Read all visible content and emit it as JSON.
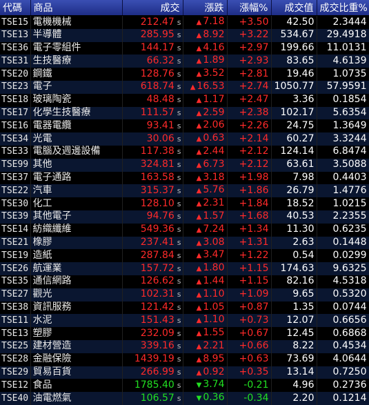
{
  "headers": [
    "代碼",
    "商品",
    "成交",
    "漲跌",
    "漲幅%",
    "成交值",
    "成交比重%"
  ],
  "colors": {
    "up": "#ff2a2a",
    "down": "#22e022",
    "header_bg": "#1e2d86"
  },
  "rows": [
    {
      "code": "TSE15",
      "name": "電機機械",
      "price": "212.47",
      "price_suffix": "s",
      "change": "7.18",
      "pct": "+3.50",
      "value": "42.50",
      "share": "2.3444",
      "dir": "up"
    },
    {
      "code": "TSE13",
      "name": "半導體",
      "price": "285.95",
      "price_suffix": "s",
      "change": "8.92",
      "pct": "+3.22",
      "value": "534.67",
      "share": "29.4918",
      "dir": "up"
    },
    {
      "code": "TSE36",
      "name": "電子零組件",
      "price": "144.17",
      "price_suffix": "s",
      "change": "4.16",
      "pct": "+2.97",
      "value": "199.66",
      "share": "11.0131",
      "dir": "up"
    },
    {
      "code": "TSE31",
      "name": "生技醫療",
      "price": "66.32",
      "price_suffix": "s",
      "change": "1.89",
      "pct": "+2.93",
      "value": "83.65",
      "share": "4.6139",
      "dir": "up"
    },
    {
      "code": "TSE20",
      "name": "鋼鐵",
      "price": "128.76",
      "price_suffix": "s",
      "change": "3.52",
      "pct": "+2.81",
      "value": "19.46",
      "share": "1.0735",
      "dir": "up"
    },
    {
      "code": "TSE23",
      "name": "電子",
      "price": "618.74",
      "price_suffix": "s",
      "change": "16.53",
      "pct": "+2.74",
      "value": "1050.77",
      "share": "57.9591",
      "dir": "up"
    },
    {
      "code": "TSE18",
      "name": "玻璃陶瓷",
      "price": "48.48",
      "price_suffix": "s",
      "change": "1.17",
      "pct": "+2.47",
      "value": "3.36",
      "share": "0.1854",
      "dir": "up"
    },
    {
      "code": "TSE17",
      "name": "化學生技醫療",
      "price": "111.57",
      "price_suffix": "s",
      "change": "2.59",
      "pct": "+2.38",
      "value": "102.17",
      "share": "5.6354",
      "dir": "up"
    },
    {
      "code": "TSE16",
      "name": "電器電纜",
      "price": "93.41",
      "price_suffix": "s",
      "change": "2.06",
      "pct": "+2.26",
      "value": "24.75",
      "share": "1.3649",
      "dir": "up"
    },
    {
      "code": "TSE34",
      "name": "光電",
      "price": "30.06",
      "price_suffix": "s",
      "change": "0.63",
      "pct": "+2.14",
      "value": "60.27",
      "share": "3.3244",
      "dir": "up"
    },
    {
      "code": "TSE33",
      "name": "電腦及週邊設備",
      "price": "117.38",
      "price_suffix": "s",
      "change": "2.44",
      "pct": "+2.12",
      "value": "124.14",
      "share": "6.8474",
      "dir": "up"
    },
    {
      "code": "TSE99",
      "name": "其他",
      "price": "324.81",
      "price_suffix": "s",
      "change": "6.73",
      "pct": "+2.12",
      "value": "63.61",
      "share": "3.5088",
      "dir": "up"
    },
    {
      "code": "TSE37",
      "name": "電子通路",
      "price": "163.58",
      "price_suffix": "s",
      "change": "3.18",
      "pct": "+1.98",
      "value": "7.98",
      "share": "0.4403",
      "dir": "up"
    },
    {
      "code": "TSE22",
      "name": "汽車",
      "price": "315.37",
      "price_suffix": "s",
      "change": "5.76",
      "pct": "+1.86",
      "value": "26.79",
      "share": "1.4776",
      "dir": "up"
    },
    {
      "code": "TSE30",
      "name": "化工",
      "price": "128.10",
      "price_suffix": "s",
      "change": "2.31",
      "pct": "+1.84",
      "value": "18.52",
      "share": "1.0215",
      "dir": "up"
    },
    {
      "code": "TSE39",
      "name": "其他電子",
      "price": "94.76",
      "price_suffix": "s",
      "change": "1.57",
      "pct": "+1.68",
      "value": "40.53",
      "share": "2.2355",
      "dir": "up"
    },
    {
      "code": "TSE14",
      "name": "紡織纖維",
      "price": "549.36",
      "price_suffix": "s",
      "change": "7.24",
      "pct": "+1.34",
      "value": "11.30",
      "share": "0.6235",
      "dir": "up"
    },
    {
      "code": "TSE21",
      "name": "橡膠",
      "price": "237.41",
      "price_suffix": "s",
      "change": "3.08",
      "pct": "+1.31",
      "value": "2.63",
      "share": "0.1448",
      "dir": "up"
    },
    {
      "code": "TSE19",
      "name": "造紙",
      "price": "287.84",
      "price_suffix": "s",
      "change": "3.47",
      "pct": "+1.22",
      "value": "0.54",
      "share": "0.0299",
      "dir": "up"
    },
    {
      "code": "TSE26",
      "name": "航運業",
      "price": "157.72",
      "price_suffix": "s",
      "change": "1.80",
      "pct": "+1.15",
      "value": "174.63",
      "share": "9.6325",
      "dir": "up"
    },
    {
      "code": "TSE35",
      "name": "通信網路",
      "price": "126.62",
      "price_suffix": "s",
      "change": "1.44",
      "pct": "+1.15",
      "value": "82.16",
      "share": "4.5318",
      "dir": "up"
    },
    {
      "code": "TSE27",
      "name": "觀光",
      "price": "102.31",
      "price_suffix": "s",
      "change": "1.10",
      "pct": "+1.09",
      "value": "9.65",
      "share": "0.5320",
      "dir": "up"
    },
    {
      "code": "TSE38",
      "name": "資訊服務",
      "price": "121.42",
      "price_suffix": "s",
      "change": "1.05",
      "pct": "+0.87",
      "value": "1.35",
      "share": "0.0744",
      "dir": "up"
    },
    {
      "code": "TSE11",
      "name": "水泥",
      "price": "151.43",
      "price_suffix": "s",
      "change": "1.10",
      "pct": "+0.73",
      "value": "12.07",
      "share": "0.6656",
      "dir": "up"
    },
    {
      "code": "TSE13",
      "name": "塑膠",
      "price": "232.09",
      "price_suffix": "s",
      "change": "1.55",
      "pct": "+0.67",
      "value": "12.45",
      "share": "0.6868",
      "dir": "up"
    },
    {
      "code": "TSE25",
      "name": "建材營造",
      "price": "339.16",
      "price_suffix": "s",
      "change": "2.21",
      "pct": "+0.66",
      "value": "8.22",
      "share": "0.4534",
      "dir": "up"
    },
    {
      "code": "TSE28",
      "name": "金融保險",
      "price": "1439.19",
      "price_suffix": "s",
      "change": "8.95",
      "pct": "+0.63",
      "value": "73.69",
      "share": "4.0644",
      "dir": "up"
    },
    {
      "code": "TSE29",
      "name": "貿易百貨",
      "price": "266.99",
      "price_suffix": "s",
      "change": "0.92",
      "pct": "+0.35",
      "value": "13.14",
      "share": "0.7250",
      "dir": "up"
    },
    {
      "code": "TSE12",
      "name": "食品",
      "price": "1785.40",
      "price_suffix": "s",
      "change": "3.74",
      "pct": "-0.21",
      "value": "4.96",
      "share": "0.2736",
      "dir": "down"
    },
    {
      "code": "TSE40",
      "name": "油電燃氣",
      "price": "106.57",
      "price_suffix": "s",
      "change": "0.36",
      "pct": "-0.34",
      "value": "2.20",
      "share": "0.1214",
      "dir": "down"
    }
  ]
}
